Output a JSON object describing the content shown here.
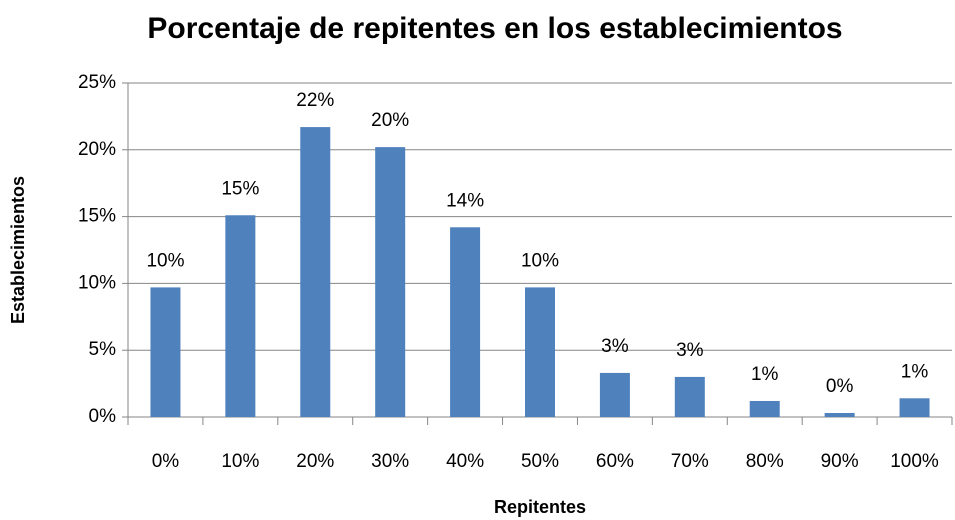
{
  "chart_data": {
    "type": "bar",
    "title": "Porcentaje de repitentes en los establecimientos",
    "x_label": "Repitentes",
    "y_label": "Establecimientos",
    "categories": [
      "0%",
      "10%",
      "20%",
      "30%",
      "40%",
      "50%",
      "60%",
      "70%",
      "80%",
      "90%",
      "100%"
    ],
    "values": [
      9.7,
      15.1,
      21.7,
      20.2,
      14.2,
      9.7,
      3.3,
      3.0,
      1.2,
      0.3,
      1.4
    ],
    "value_labels": [
      "10%",
      "15%",
      "22%",
      "20%",
      "14%",
      "10%",
      "3%",
      "3%",
      "1%",
      "0%",
      "1%"
    ],
    "color": "#4f81bd",
    "ylim": [
      0,
      25
    ],
    "yticks": [
      {
        "value": 0,
        "label": "0%"
      },
      {
        "value": 5,
        "label": "5%"
      },
      {
        "value": 10,
        "label": "10%"
      },
      {
        "value": 15,
        "label": "15%"
      },
      {
        "value": 20,
        "label": "20%"
      },
      {
        "value": 25,
        "label": "25%"
      }
    ],
    "grid": true
  }
}
